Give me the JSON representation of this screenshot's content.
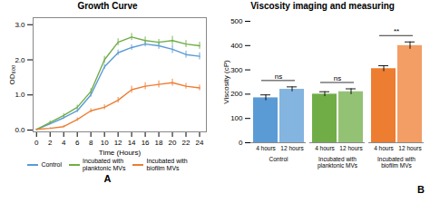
{
  "chart_data": [
    {
      "type": "line",
      "title": "Growth Curve",
      "xlabel": "Time (Hours)",
      "ylabel": "OD₆₀₀",
      "panel_label": "A",
      "x": [
        0,
        2,
        4,
        6,
        8,
        10,
        12,
        14,
        16,
        18,
        20,
        22,
        24
      ],
      "series": [
        {
          "name": "Control",
          "color": "#5b9bd5",
          "values": [
            0.02,
            0.18,
            0.35,
            0.55,
            1.0,
            1.8,
            2.2,
            2.35,
            2.45,
            2.4,
            2.3,
            2.15,
            2.1
          ],
          "errors": [
            0.01,
            0.03,
            0.04,
            0.05,
            0.06,
            0.07,
            0.08,
            0.08,
            0.08,
            0.1,
            0.12,
            0.1,
            0.1
          ]
        },
        {
          "name": "Incubated with\nplanktonic MVs",
          "color": "#70ad47",
          "values": [
            0.02,
            0.22,
            0.42,
            0.65,
            1.1,
            2.0,
            2.5,
            2.65,
            2.55,
            2.5,
            2.55,
            2.45,
            2.4
          ],
          "errors": [
            0.01,
            0.04,
            0.05,
            0.06,
            0.08,
            0.1,
            0.1,
            0.1,
            0.1,
            0.08,
            0.12,
            0.1,
            0.1
          ]
        },
        {
          "name": "Incubated with\nbiofilm MVs",
          "color": "#ed7d31",
          "values": [
            0.02,
            0.05,
            0.1,
            0.3,
            0.55,
            0.65,
            0.85,
            1.15,
            1.25,
            1.3,
            1.35,
            1.25,
            1.2
          ],
          "errors": [
            0.01,
            0.02,
            0.03,
            0.05,
            0.06,
            0.07,
            0.08,
            0.1,
            0.1,
            0.1,
            0.1,
            0.08,
            0.08
          ]
        }
      ],
      "xlim": [
        -0.5,
        25
      ],
      "xticks": [
        0,
        2,
        4,
        6,
        8,
        10,
        12,
        14,
        16,
        18,
        20,
        22,
        24
      ],
      "ylim": [
        -0.05,
        3.2
      ],
      "yticks": [
        0,
        1,
        2,
        3
      ],
      "legend": "bottom"
    },
    {
      "type": "bar",
      "title": "Viscosity imaging and measuring",
      "ylabel": "Viscosity (cP)",
      "panel_label": "B",
      "categories": [
        "Control",
        "Incubated with\nplanktonic MVs",
        "Incubated with\nbiofilm MVs"
      ],
      "series": [
        {
          "name": "4 hours",
          "values": [
            185,
            200,
            305
          ],
          "errors": [
            12,
            10,
            12
          ]
        },
        {
          "name": "12 hours",
          "values": [
            220,
            210,
            400
          ],
          "errors": [
            10,
            12,
            15
          ]
        }
      ],
      "colors": [
        "#5b9bd5",
        "#70ad47",
        "#ed7d31"
      ],
      "ylim": [
        0,
        500
      ],
      "yticks": [
        0,
        100,
        200,
        300,
        400,
        500
      ],
      "annotations": [
        {
          "text": "ns",
          "category": "Control"
        },
        {
          "text": "ns",
          "category": "Incubated with\nplanktonic MVs"
        },
        {
          "text": "**",
          "category": "Incubated with\nbiofilm MVs"
        }
      ]
    }
  ]
}
